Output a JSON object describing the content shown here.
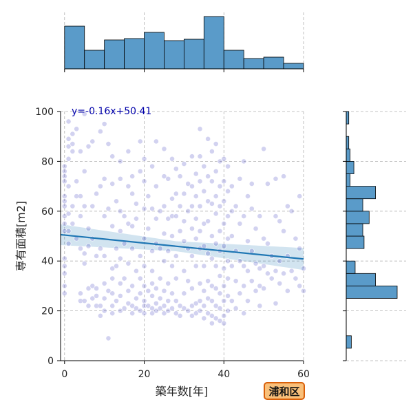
{
  "chart_data": {
    "type": "scatter",
    "title": "",
    "xlabel": "築年数[年]",
    "ylabel": "専有面積[m2]",
    "xlim": [
      -1,
      60
    ],
    "ylim": [
      0,
      100
    ],
    "xticks": [
      0,
      20,
      40,
      60
    ],
    "yticks": [
      0,
      20,
      40,
      60,
      80,
      100
    ],
    "grid": true,
    "regression": {
      "label": "y=-0.16x+50.41",
      "slope": -0.16,
      "intercept": 50.41,
      "x_range": [
        -1,
        60
      ]
    },
    "scatter_color": "#3333bb",
    "line_color": "#1f77b4",
    "hist_color": "#5a9bc9",
    "top_histogram": {
      "bin_edges": [
        0,
        5,
        10,
        15,
        20,
        25,
        30,
        35,
        40,
        45,
        50,
        55,
        60
      ],
      "counts": [
        62,
        27,
        42,
        44,
        53,
        41,
        43,
        76,
        27,
        15,
        17,
        8
      ]
    },
    "right_histogram": {
      "bin_edges": [
        5,
        10,
        15,
        20,
        25,
        30,
        35,
        40,
        45,
        50,
        55,
        60,
        65,
        70,
        75,
        80,
        85,
        90,
        95,
        100
      ],
      "counts": [
        4,
        0,
        0,
        0,
        40,
        23,
        7,
        0,
        14,
        13,
        18,
        13,
        23,
        3,
        6,
        3,
        2,
        0,
        2
      ]
    },
    "points": [
      [
        0,
        78
      ],
      [
        0,
        76
      ],
      [
        0,
        74
      ],
      [
        0,
        72
      ],
      [
        0,
        66
      ],
      [
        0,
        64
      ],
      [
        0,
        62
      ],
      [
        0,
        58
      ],
      [
        0,
        55
      ],
      [
        0,
        52
      ],
      [
        0,
        41
      ],
      [
        0,
        38
      ],
      [
        0,
        35
      ],
      [
        0,
        30
      ],
      [
        0,
        27
      ],
      [
        1,
        96
      ],
      [
        1,
        89
      ],
      [
        1,
        86
      ],
      [
        1,
        81
      ],
      [
        1,
        70
      ],
      [
        1,
        59
      ],
      [
        1,
        52
      ],
      [
        1,
        47
      ],
      [
        2,
        91
      ],
      [
        2,
        87
      ],
      [
        2,
        84
      ],
      [
        2,
        62
      ],
      [
        2,
        55
      ],
      [
        3,
        93
      ],
      [
        3,
        72
      ],
      [
        3,
        66
      ],
      [
        3,
        49
      ],
      [
        4,
        84
      ],
      [
        4,
        66
      ],
      [
        4,
        58
      ],
      [
        4,
        45
      ],
      [
        4,
        27
      ],
      [
        4,
        24
      ],
      [
        5,
        99
      ],
      [
        5,
        76
      ],
      [
        5,
        62
      ],
      [
        5,
        43
      ],
      [
        5,
        39
      ],
      [
        5,
        24
      ],
      [
        6,
        86
      ],
      [
        6,
        53
      ],
      [
        6,
        46
      ],
      [
        6,
        29
      ],
      [
        6,
        22
      ],
      [
        7,
        88
      ],
      [
        7,
        62
      ],
      [
        7,
        49
      ],
      [
        7,
        30
      ],
      [
        7,
        25
      ],
      [
        8,
        67
      ],
      [
        8,
        42
      ],
      [
        8,
        29
      ],
      [
        8,
        26
      ],
      [
        8,
        22
      ],
      [
        9,
        92
      ],
      [
        9,
        70
      ],
      [
        9,
        45
      ],
      [
        9,
        22
      ],
      [
        9,
        18
      ],
      [
        10,
        95
      ],
      [
        10,
        73
      ],
      [
        10,
        58
      ],
      [
        10,
        42
      ],
      [
        10,
        31
      ],
      [
        10,
        25
      ],
      [
        10,
        20
      ],
      [
        11,
        87
      ],
      [
        11,
        61
      ],
      [
        11,
        28
      ],
      [
        11,
        9
      ],
      [
        12,
        82
      ],
      [
        12,
        71
      ],
      [
        12,
        54
      ],
      [
        12,
        37
      ],
      [
        12,
        33
      ],
      [
        12,
        27
      ],
      [
        12,
        22
      ],
      [
        12,
        19
      ],
      [
        13,
        64
      ],
      [
        13,
        45
      ],
      [
        13,
        38
      ],
      [
        13,
        24
      ],
      [
        14,
        80
      ],
      [
        14,
        73
      ],
      [
        14,
        60
      ],
      [
        14,
        52
      ],
      [
        14,
        41
      ],
      [
        14,
        31
      ],
      [
        14,
        26
      ],
      [
        14,
        20
      ],
      [
        15,
        58
      ],
      [
        15,
        47
      ],
      [
        15,
        33
      ],
      [
        15,
        21
      ],
      [
        16,
        84
      ],
      [
        16,
        70
      ],
      [
        16,
        55
      ],
      [
        16,
        39
      ],
      [
        16,
        28
      ],
      [
        16,
        23
      ],
      [
        17,
        74
      ],
      [
        17,
        67
      ],
      [
        17,
        54
      ],
      [
        17,
        45
      ],
      [
        17,
        30
      ],
      [
        17,
        22
      ],
      [
        17,
        19
      ],
      [
        18,
        63
      ],
      [
        18,
        57
      ],
      [
        18,
        36
      ],
      [
        18,
        25
      ],
      [
        18,
        21
      ],
      [
        19,
        88
      ],
      [
        19,
        76
      ],
      [
        19,
        42
      ],
      [
        19,
        33
      ],
      [
        19,
        27
      ],
      [
        19,
        20
      ],
      [
        20,
        81
      ],
      [
        20,
        72
      ],
      [
        20,
        61
      ],
      [
        20,
        49
      ],
      [
        20,
        38
      ],
      [
        20,
        30
      ],
      [
        20,
        24
      ],
      [
        20,
        22
      ],
      [
        20,
        19
      ],
      [
        21,
        66
      ],
      [
        21,
        53
      ],
      [
        21,
        28
      ],
      [
        21,
        22
      ],
      [
        22,
        78
      ],
      [
        22,
        61
      ],
      [
        22,
        44
      ],
      [
        22,
        36
      ],
      [
        22,
        31
      ],
      [
        22,
        26
      ],
      [
        22,
        21
      ],
      [
        22,
        19
      ],
      [
        23,
        88
      ],
      [
        23,
        70
      ],
      [
        23,
        57
      ],
      [
        23,
        47
      ],
      [
        23,
        29
      ],
      [
        23,
        23
      ],
      [
        23,
        20
      ],
      [
        24,
        60
      ],
      [
        24,
        45
      ],
      [
        24,
        33
      ],
      [
        24,
        25
      ],
      [
        24,
        21
      ],
      [
        25,
        85
      ],
      [
        25,
        74
      ],
      [
        25,
        62
      ],
      [
        25,
        51
      ],
      [
        25,
        40
      ],
      [
        25,
        28
      ],
      [
        25,
        22
      ],
      [
        25,
        19
      ],
      [
        26,
        73
      ],
      [
        26,
        57
      ],
      [
        26,
        44
      ],
      [
        26,
        31
      ],
      [
        26,
        24
      ],
      [
        26,
        20
      ],
      [
        27,
        81
      ],
      [
        27,
        65
      ],
      [
        27,
        58
      ],
      [
        27,
        50
      ],
      [
        27,
        38
      ],
      [
        27,
        27
      ],
      [
        27,
        21
      ],
      [
        28,
        77
      ],
      [
        28,
        67
      ],
      [
        28,
        58
      ],
      [
        28,
        42
      ],
      [
        28,
        33
      ],
      [
        28,
        24
      ],
      [
        28,
        19
      ],
      [
        29,
        74
      ],
      [
        29,
        62
      ],
      [
        29,
        52
      ],
      [
        29,
        22
      ],
      [
        29,
        18
      ],
      [
        30,
        79
      ],
      [
        30,
        67
      ],
      [
        30,
        56
      ],
      [
        30,
        48
      ],
      [
        30,
        36
      ],
      [
        30,
        27
      ],
      [
        30,
        21
      ],
      [
        31,
        71
      ],
      [
        31,
        60
      ],
      [
        31,
        45
      ],
      [
        31,
        32
      ],
      [
        31,
        20
      ],
      [
        32,
        82
      ],
      [
        32,
        70
      ],
      [
        32,
        62
      ],
      [
        32,
        53
      ],
      [
        32,
        42
      ],
      [
        32,
        29
      ],
      [
        32,
        22
      ],
      [
        32,
        18
      ],
      [
        33,
        75
      ],
      [
        33,
        66
      ],
      [
        33,
        57
      ],
      [
        33,
        49
      ],
      [
        33,
        38
      ],
      [
        33,
        23
      ],
      [
        33,
        19
      ],
      [
        34,
        93
      ],
      [
        34,
        82
      ],
      [
        34,
        72
      ],
      [
        34,
        62
      ],
      [
        34,
        52
      ],
      [
        34,
        45
      ],
      [
        34,
        31
      ],
      [
        34,
        24
      ],
      [
        34,
        20
      ],
      [
        35,
        78
      ],
      [
        35,
        68
      ],
      [
        35,
        55
      ],
      [
        35,
        46
      ],
      [
        35,
        38
      ],
      [
        35,
        28
      ],
      [
        35,
        22
      ],
      [
        35,
        17
      ],
      [
        36,
        89
      ],
      [
        36,
        74
      ],
      [
        36,
        64
      ],
      [
        36,
        56
      ],
      [
        36,
        43
      ],
      [
        36,
        32
      ],
      [
        36,
        25
      ],
      [
        36,
        19
      ],
      [
        37,
        84
      ],
      [
        37,
        72
      ],
      [
        37,
        63
      ],
      [
        37,
        50
      ],
      [
        37,
        41
      ],
      [
        37,
        30
      ],
      [
        37,
        24
      ],
      [
        37,
        18
      ],
      [
        37,
        15
      ],
      [
        38,
        87
      ],
      [
        38,
        76
      ],
      [
        38,
        66
      ],
      [
        38,
        59
      ],
      [
        38,
        47
      ],
      [
        38,
        38
      ],
      [
        38,
        29
      ],
      [
        38,
        22
      ],
      [
        38,
        17
      ],
      [
        39,
        80
      ],
      [
        39,
        70
      ],
      [
        39,
        62
      ],
      [
        39,
        52
      ],
      [
        39,
        44
      ],
      [
        39,
        34
      ],
      [
        39,
        27
      ],
      [
        39,
        21
      ],
      [
        39,
        16
      ],
      [
        40,
        81
      ],
      [
        40,
        72
      ],
      [
        40,
        64
      ],
      [
        40,
        55
      ],
      [
        40,
        46
      ],
      [
        40,
        37
      ],
      [
        40,
        30
      ],
      [
        40,
        24
      ],
      [
        40,
        18
      ],
      [
        40,
        15
      ],
      [
        41,
        78
      ],
      [
        41,
        68
      ],
      [
        41,
        58
      ],
      [
        41,
        49
      ],
      [
        41,
        40
      ],
      [
        41,
        33
      ],
      [
        41,
        26
      ],
      [
        41,
        20
      ],
      [
        42,
        70
      ],
      [
        42,
        60
      ],
      [
        42,
        50
      ],
      [
        42,
        38
      ],
      [
        42,
        24
      ],
      [
        43,
        62
      ],
      [
        43,
        44
      ],
      [
        43,
        32
      ],
      [
        43,
        21
      ],
      [
        44,
        73
      ],
      [
        44,
        55
      ],
      [
        44,
        40
      ],
      [
        44,
        27
      ],
      [
        45,
        80
      ],
      [
        45,
        58
      ],
      [
        45,
        38
      ],
      [
        45,
        30
      ],
      [
        45,
        19
      ],
      [
        46,
        66
      ],
      [
        46,
        48
      ],
      [
        46,
        36
      ],
      [
        46,
        24
      ],
      [
        47,
        71
      ],
      [
        47,
        61
      ],
      [
        47,
        44
      ],
      [
        47,
        32
      ],
      [
        48,
        53
      ],
      [
        48,
        39
      ],
      [
        48,
        28
      ],
      [
        49,
        58
      ],
      [
        49,
        37
      ],
      [
        49,
        30
      ],
      [
        49,
        22
      ],
      [
        50,
        85
      ],
      [
        50,
        49
      ],
      [
        50,
        38
      ],
      [
        50,
        29
      ],
      [
        51,
        71
      ],
      [
        51,
        47
      ],
      [
        51,
        35
      ],
      [
        52,
        42
      ],
      [
        52,
        33
      ],
      [
        53,
        73
      ],
      [
        53,
        58
      ],
      [
        53,
        36
      ],
      [
        53,
        23
      ],
      [
        54,
        56
      ],
      [
        54,
        40
      ],
      [
        54,
        31
      ],
      [
        55,
        74
      ],
      [
        55,
        52
      ],
      [
        55,
        35
      ],
      [
        56,
        62
      ],
      [
        56,
        42
      ],
      [
        56,
        28
      ],
      [
        57,
        60
      ],
      [
        57,
        36
      ],
      [
        58,
        49
      ],
      [
        58,
        33
      ],
      [
        59,
        66
      ],
      [
        59,
        45
      ],
      [
        59,
        30
      ],
      [
        60,
        37
      ],
      [
        60,
        28
      ]
    ]
  },
  "badge": {
    "label": "浦和区"
  }
}
